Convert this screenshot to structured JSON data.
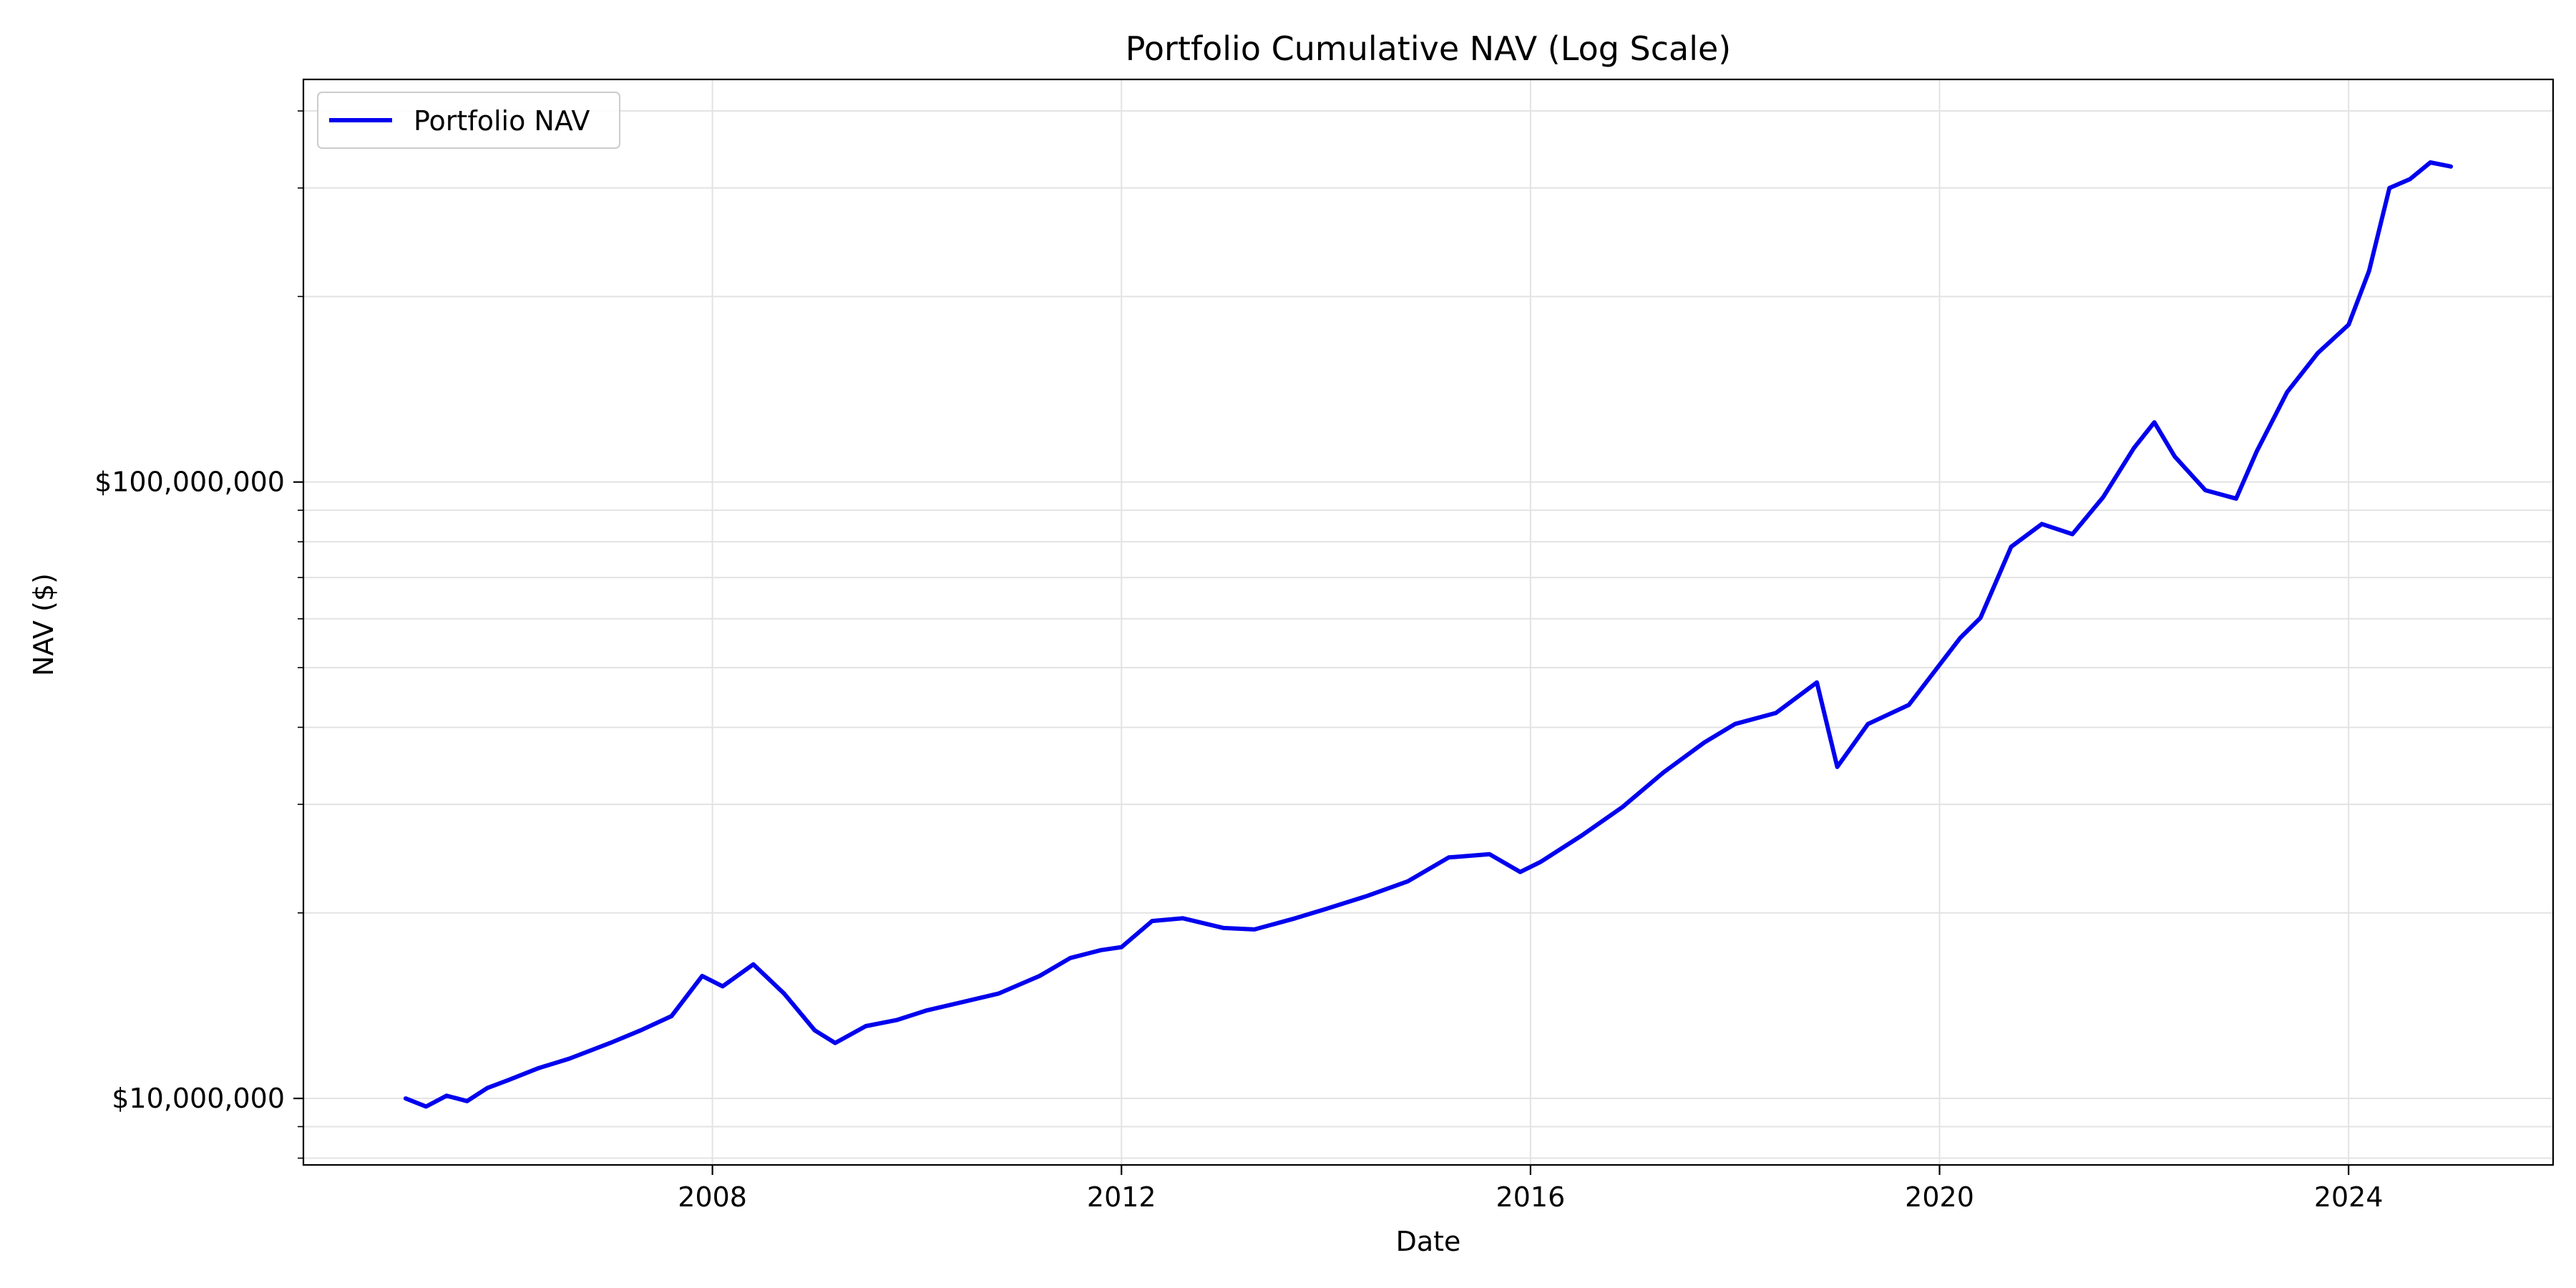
{
  "chart_data": {
    "type": "line",
    "title": "Portfolio Cumulative NAV (Log Scale)",
    "xlabel": "Date",
    "ylabel": "NAV ($)",
    "y_scale": "log",
    "xlim": [
      2004.0,
      2026.0
    ],
    "ylim": [
      7800000,
      450000000
    ],
    "x_ticks": [
      2008,
      2012,
      2016,
      2020,
      2024
    ],
    "x_tick_labels": [
      "2008",
      "2012",
      "2016",
      "2020",
      "2024"
    ],
    "y_ticks": [
      10000000,
      100000000
    ],
    "y_tick_labels": [
      "$10,000,000",
      "$100,000,000"
    ],
    "grid": true,
    "legend_position": "top-left",
    "series": [
      {
        "name": "Portfolio NAV",
        "color": "#0000ee",
        "x": [
          2005.0,
          2005.2,
          2005.4,
          2005.6,
          2005.8,
          2006.0,
          2006.3,
          2006.6,
          2007.0,
          2007.3,
          2007.6,
          2007.9,
          2008.1,
          2008.4,
          2008.7,
          2009.0,
          2009.2,
          2009.5,
          2009.8,
          2010.1,
          2010.5,
          2010.8,
          2011.2,
          2011.5,
          2011.8,
          2012.0,
          2012.3,
          2012.6,
          2013.0,
          2013.3,
          2013.7,
          2014.0,
          2014.4,
          2014.8,
          2015.2,
          2015.6,
          2015.9,
          2016.1,
          2016.5,
          2016.9,
          2017.3,
          2017.7,
          2018.0,
          2018.4,
          2018.8,
          2019.0,
          2019.3,
          2019.7,
          2020.0,
          2020.2,
          2020.4,
          2020.7,
          2021.0,
          2021.3,
          2021.6,
          2021.9,
          2022.1,
          2022.3,
          2022.6,
          2022.9,
          2023.1,
          2023.4,
          2023.7,
          2024.0,
          2024.2,
          2024.4,
          2024.6,
          2024.8,
          2025.0
        ],
        "y": [
          10000000,
          9700000,
          10100000,
          9900000,
          10400000,
          10700000,
          11200000,
          11600000,
          12300000,
          12900000,
          13600000,
          15800000,
          15200000,
          16500000,
          14800000,
          12900000,
          12300000,
          13100000,
          13400000,
          13900000,
          14400000,
          14800000,
          15800000,
          16900000,
          17400000,
          17600000,
          19400000,
          19600000,
          18900000,
          18800000,
          19600000,
          20300000,
          21300000,
          22500000,
          24600000,
          24900000,
          23300000,
          24200000,
          26700000,
          29700000,
          33800000,
          37800000,
          40500000,
          42200000,
          47300000,
          34500000,
          40500000,
          43500000,
          50500000,
          55800000,
          60200000,
          78500000,
          85500000,
          82300000,
          94500000,
          113500000,
          125000000,
          110000000,
          97000000,
          94000000,
          112000000,
          140000000,
          162000000,
          180000000,
          220000000,
          300000000,
          310000000,
          330000000,
          325000000
        ]
      }
    ]
  }
}
